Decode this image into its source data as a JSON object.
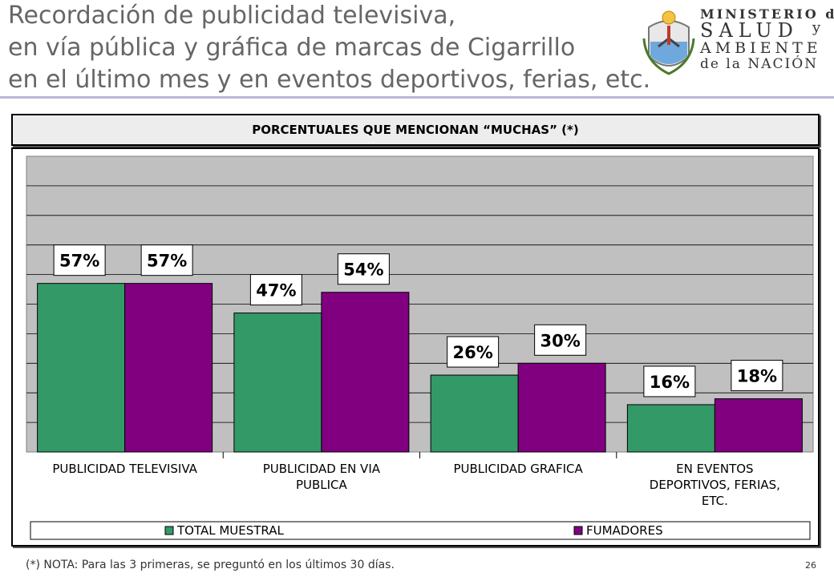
{
  "title_lines": [
    "Recordación de publicidad televisiva,",
    "en vía pública y gráfica de marcas de Cigarrillo",
    "en el último mes y en eventos deportivos, ferias, etc."
  ],
  "logo": {
    "line1": "MINISTERIO de",
    "line2": "SALUD",
    "line2b": "y",
    "line3": "AMBIENTE",
    "line4": "de la NACIÓN"
  },
  "header": "PORCENTUALES QUE MENCIONAN “MUCHAS” (*)",
  "note": "(*) NOTA: Para las 3 primeras, se preguntó en los últimos 30 días.",
  "page_number": "26",
  "colors": {
    "total_muestral": "#339966",
    "fumadores": "#800080",
    "plot_bg": "#c0c0c0",
    "title": "#666666"
  },
  "chart_data": {
    "type": "bar",
    "categories": [
      [
        "PUBLICIDAD TELEVISIVA"
      ],
      [
        "PUBLICIDAD EN VIA",
        "PUBLICA"
      ],
      [
        "PUBLICIDAD GRAFICA"
      ],
      [
        "EN EVENTOS",
        "DEPORTIVOS, FERIAS,",
        "ETC."
      ]
    ],
    "series": [
      {
        "name": "TOTAL MUESTRAL",
        "values": [
          57,
          47,
          26,
          16
        ],
        "labels": [
          "57%",
          "47%",
          "26%",
          "16%"
        ]
      },
      {
        "name": "FUMADORES",
        "values": [
          57,
          54,
          30,
          18
        ],
        "labels": [
          "57%",
          "54%",
          "30%",
          "18%"
        ]
      }
    ],
    "ylim": [
      0,
      100
    ],
    "gridlines": true,
    "legend": "bottom"
  }
}
